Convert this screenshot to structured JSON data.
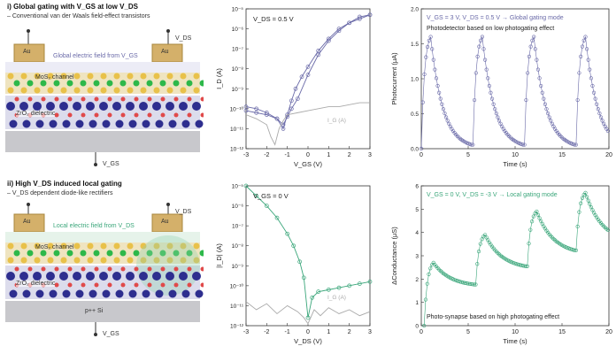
{
  "schematic_top": {
    "title": "i) Global gating with V_GS at low V_DS",
    "subtitle": "– Conventional van der Waals field-effect transistors",
    "field_label": "Global electric field from V_GS",
    "channel_label": "MoS₂ channel",
    "dielectric_label": "ZrO₂ dielectric",
    "contact_label": "Au",
    "vds_label": "V_DS",
    "vgs_label": "V_GS"
  },
  "schematic_bottom": {
    "title": "ii) High V_DS induced local gating",
    "subtitle": "– V_DS dependent diode-like rectifiers",
    "field_label": "Local electric field from V_DS",
    "channel_label": "MoS₂ channel",
    "dielectric_label": "ZrO₂ dielectric",
    "substrate_label": "p++ Si",
    "contact_label": "Au",
    "vds_label": "V_DS",
    "vgs_label": "V_GS"
  },
  "colors": {
    "purple": "#6a6aa8",
    "green": "#3aa67a",
    "gray": "#aaaaaa",
    "gold": "#d4b06a"
  },
  "chart_data": [
    {
      "type": "line",
      "annotation": "V_DS = 0.5 V",
      "xlabel": "V_GS (V)",
      "ylabel": "I_D (A)",
      "xlim": [
        -3,
        3
      ],
      "ylim_log10": [
        -12,
        -5
      ],
      "yscale": "log",
      "xticks": [
        "-3",
        "-2",
        "-1",
        "0",
        "1",
        "2",
        "3"
      ],
      "yticks": [
        "10⁻¹²",
        "10⁻¹¹",
        "10⁻¹⁰",
        "10⁻⁹",
        "10⁻⁸",
        "10⁻⁷",
        "10⁻⁶",
        "10⁻⁵"
      ],
      "series_labels": {
        "gate": "I_G (A)"
      },
      "series": [
        {
          "x": [
            -3,
            -2.5,
            -2,
            -1.5,
            -1.2,
            -1,
            -0.8,
            -0.5,
            0,
            0.5,
            1,
            1.5,
            2,
            2.5,
            3
          ],
          "log10_y": [
            -10.1,
            -10.2,
            -10.3,
            -10.5,
            -10.8,
            -10.4,
            -10.0,
            -9.5,
            -8.3,
            -7.3,
            -6.6,
            -6.1,
            -5.7,
            -5.5,
            -5.3
          ]
        },
        {
          "x": [
            -3,
            -2.5,
            -2,
            -1.5,
            -1.2,
            -1,
            -0.8,
            -0.6,
            -0.3,
            0,
            0.5,
            1,
            1.5,
            2,
            2.5,
            3
          ],
          "log10_y": [
            -9.9,
            -10.0,
            -10.2,
            -10.5,
            -11.0,
            -10.3,
            -9.6,
            -9.0,
            -8.4,
            -7.9,
            -7.1,
            -6.5,
            -6.0,
            -5.7,
            -5.4,
            -5.3
          ]
        },
        {
          "x": [
            -3,
            -2.5,
            -2,
            -1.8,
            -1.6,
            -1.4,
            -1.2,
            -1,
            -0.5,
            0,
            0.5,
            1,
            1.5,
            2,
            2.5,
            3
          ],
          "log10_y": [
            -10.3,
            -10.5,
            -10.8,
            -11.4,
            -11.8,
            -11.0,
            -10.6,
            -10.3,
            -10.2,
            -10.1,
            -10.0,
            -9.9,
            -9.9,
            -9.8,
            -9.7,
            -9.7
          ]
        }
      ]
    },
    {
      "type": "scatter",
      "annotation": "V_GS = 3 V, V_DS = 0.5 V → Global gating mode",
      "note": "Photodetector based on low photogating effect",
      "xlabel": "Time (s)",
      "ylabel": "Photocurrent (μA)",
      "xlim": [
        0,
        20
      ],
      "ylim": [
        0,
        2.0
      ],
      "xticks": [
        "0",
        "5",
        "10",
        "15",
        "20"
      ],
      "yticks": [
        "0.0",
        "0.5",
        "1.0",
        "1.5",
        "2.0"
      ],
      "pulse_on_times": [
        0,
        5.5,
        11,
        16.5
      ],
      "pulse_width_s": 1.0,
      "peak_values": [
        1.6,
        1.6,
        1.6,
        1.6
      ]
    },
    {
      "type": "line",
      "annotation": "V_GS = 0 V",
      "xlabel": "V_DS (V)",
      "ylabel": "|I_D| (A)",
      "xlim": [
        -3,
        3
      ],
      "ylim_log10": [
        -12,
        -5
      ],
      "yscale": "log",
      "xticks": [
        "-3",
        "-2",
        "-1",
        "0",
        "1",
        "2",
        "3"
      ],
      "yticks": [
        "10⁻¹²",
        "10⁻¹¹",
        "10⁻¹⁰",
        "10⁻⁹",
        "10⁻⁸",
        "10⁻⁷",
        "10⁻⁶",
        "10⁻⁵"
      ],
      "series_labels": {
        "gate": "I_G (A)"
      },
      "series": [
        {
          "x": [
            -3,
            -2.5,
            -2,
            -1.5,
            -1,
            -0.7,
            -0.4,
            -0.2,
            0,
            0.2,
            0.5,
            1,
            1.5,
            2,
            2.5,
            3
          ],
          "log10_y": [
            -5.0,
            -5.5,
            -6.0,
            -6.6,
            -7.4,
            -8.0,
            -8.8,
            -9.6,
            -11.6,
            -10.6,
            -10.3,
            -10.2,
            -10.1,
            -10.0,
            -9.9,
            -9.8
          ]
        },
        {
          "x": [
            -3,
            -2.5,
            -2,
            -1.5,
            -1,
            -0.5,
            -0.2,
            0,
            0.3,
            0.6,
            1,
            1.5,
            2,
            2.5,
            3
          ],
          "log10_y": [
            -10.8,
            -11.2,
            -10.9,
            -11.4,
            -11.0,
            -11.3,
            -11.6,
            -11.9,
            -11.2,
            -11.5,
            -11.1,
            -11.4,
            -11.2,
            -11.5,
            -11.3
          ]
        }
      ]
    },
    {
      "type": "scatter",
      "annotation": "V_GS = 0 V, V_DS = -3 V → Local gating mode",
      "note": "Photo-synapse based on high photogating effect",
      "xlabel": "Time (s)",
      "ylabel": "ΔConductance (μS)",
      "xlim": [
        0,
        20
      ],
      "ylim": [
        0,
        6
      ],
      "xticks": [
        "0",
        "5",
        "10",
        "15",
        "20"
      ],
      "yticks": [
        "0",
        "1",
        "2",
        "3",
        "4",
        "5",
        "6"
      ],
      "pulse_on_times": [
        0.3,
        5.8,
        11.3,
        16.5
      ],
      "pulse_width_s": 1.0,
      "peak_values": [
        2.7,
        3.9,
        4.9,
        5.7
      ]
    }
  ]
}
